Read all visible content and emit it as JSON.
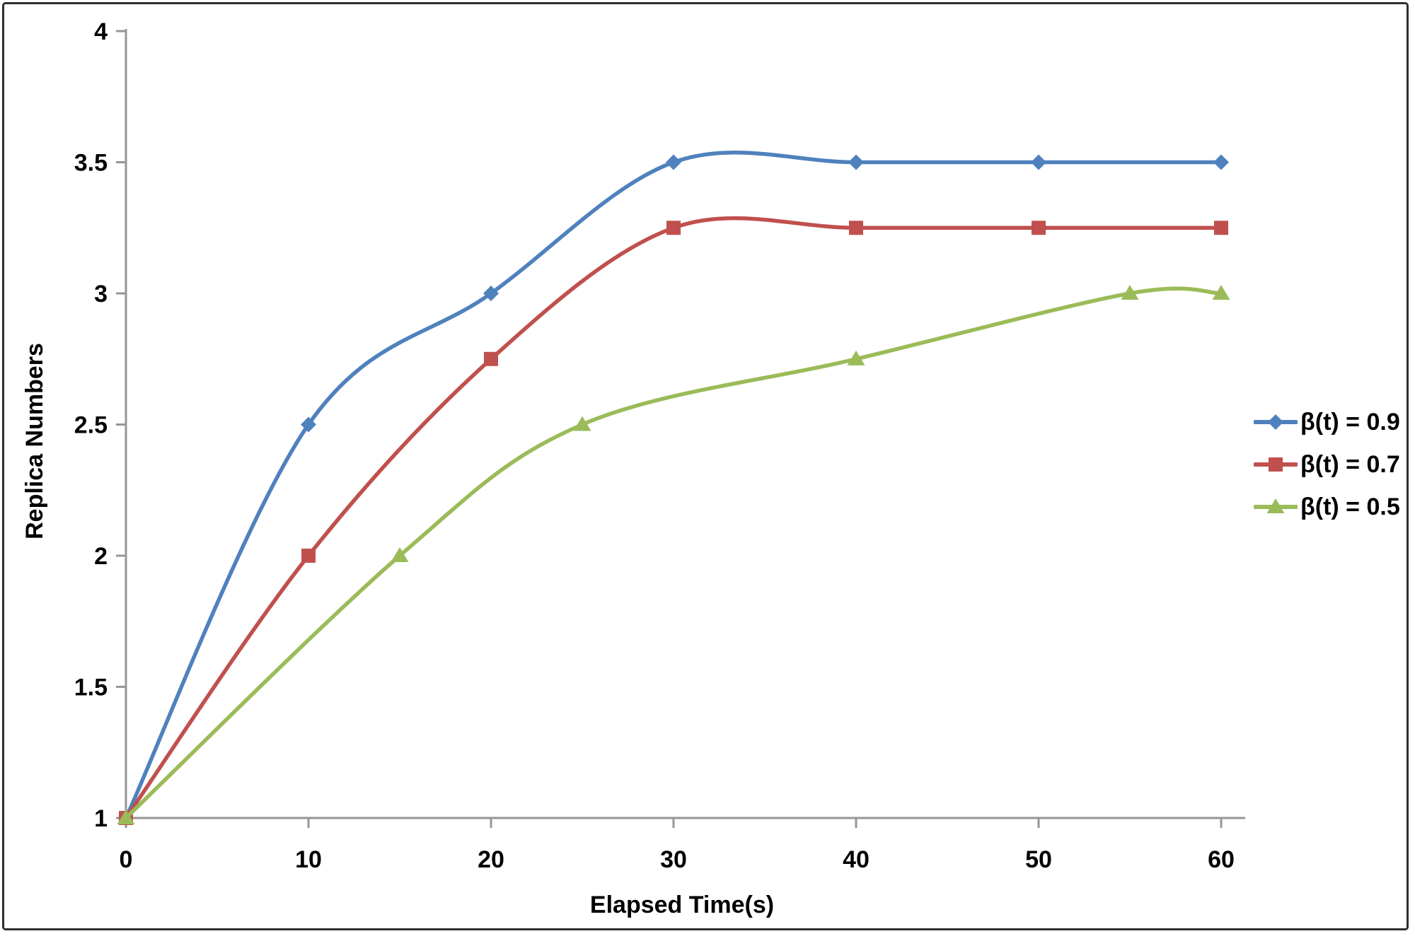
{
  "figure": {
    "background": "#ffffff",
    "border_color": "#2e2e2e"
  },
  "chart_data": {
    "type": "line",
    "title": "",
    "xlabel": "Elapsed Time(s)",
    "ylabel": "Replica Numbers",
    "xlim": [
      0,
      60
    ],
    "ylim": [
      1,
      4
    ],
    "xtick_labels": [
      "0",
      "10",
      "20",
      "30",
      "40",
      "50",
      "60"
    ],
    "xtick_values": [
      0,
      10,
      20,
      30,
      40,
      50,
      60
    ],
    "ytick_labels": [
      "1",
      "1.5",
      "2",
      "2.5",
      "3",
      "3.5",
      "4"
    ],
    "ytick_values": [
      1,
      1.5,
      2,
      2.5,
      3,
      3.5,
      4
    ],
    "grid": false,
    "line_style": "smooth",
    "legend_position": "right-middle",
    "axis_color": "#969696",
    "text_color": "#000000",
    "series": [
      {
        "name": "β(t) = 0.9",
        "color": "#4F81BD",
        "marker": "diamond",
        "x": [
          0,
          10,
          20,
          30,
          40,
          50,
          60
        ],
        "y": [
          1,
          2.5,
          3,
          3.5,
          3.5,
          3.5,
          3.5
        ]
      },
      {
        "name": "β(t) = 0.7",
        "color": "#C0504D",
        "marker": "square",
        "x": [
          0,
          10,
          20,
          30,
          40,
          50,
          60
        ],
        "y": [
          1,
          2,
          2.75,
          3.25,
          3.25,
          3.25,
          3.25
        ]
      },
      {
        "name": "β(t) = 0.5",
        "color": "#9BBB59",
        "marker": "triangle",
        "x": [
          0,
          15,
          25,
          40,
          55,
          60
        ],
        "y": [
          1,
          2,
          2.5,
          2.75,
          3,
          3
        ]
      }
    ]
  }
}
